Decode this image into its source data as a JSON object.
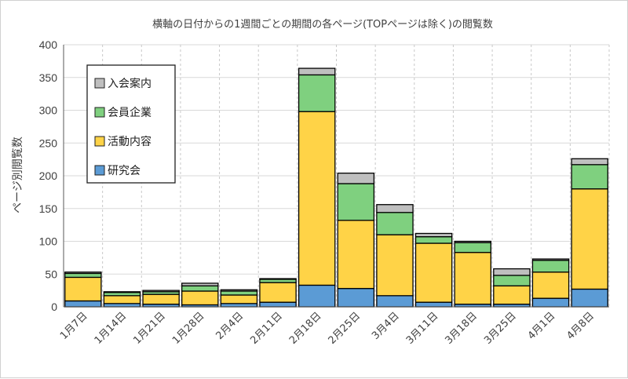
{
  "chart_data": {
    "type": "bar",
    "stacked": true,
    "title": "横軸の日付からの1週間ごとの期間の各ページ(TOPページは除く)の閲覧数",
    "xlabel": "",
    "ylabel": "ページ別閲覧数",
    "categories": [
      "1月7日",
      "1月14日",
      "1月21日",
      "1月28日",
      "2月4日",
      "2月11日",
      "2月18日",
      "2月25日",
      "3月4日",
      "3月11日",
      "3月18日",
      "3月25日",
      "4月1日",
      "4月8日"
    ],
    "series": [
      {
        "name": "研究会",
        "color": "#5b9bd5",
        "values": [
          9,
          5,
          4,
          3,
          5,
          7,
          33,
          28,
          17,
          7,
          4,
          4,
          13,
          27
        ]
      },
      {
        "name": "活動内容",
        "color": "#ffd347",
        "values": [
          36,
          12,
          15,
          21,
          13,
          30,
          265,
          104,
          93,
          90,
          79,
          28,
          40,
          153
        ]
      },
      {
        "name": "会員企業",
        "color": "#7fd07f",
        "values": [
          6,
          5,
          4,
          8,
          6,
          5,
          56,
          56,
          34,
          10,
          15,
          16,
          18,
          37
        ]
      },
      {
        "name": "入会案内",
        "color": "#bfbfbf",
        "values": [
          2,
          1,
          2,
          4,
          2,
          1,
          10,
          16,
          12,
          5,
          2,
          10,
          2,
          9
        ]
      }
    ],
    "ylim": [
      0,
      400
    ],
    "yticks": [
      0,
      50,
      100,
      150,
      200,
      250,
      300,
      350,
      400
    ],
    "grid": true,
    "legend_position": "top-left"
  }
}
